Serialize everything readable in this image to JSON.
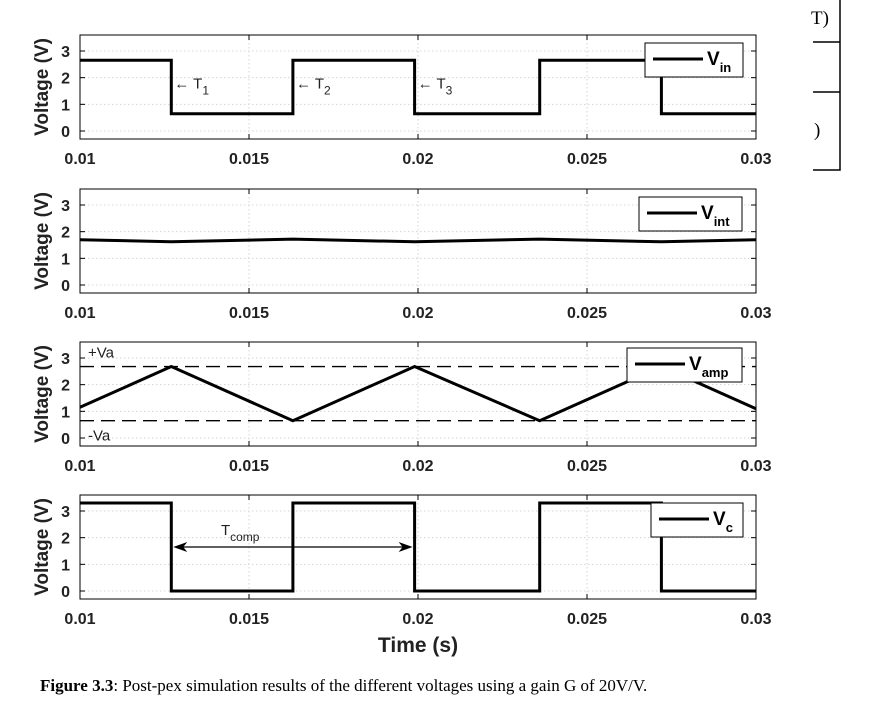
{
  "caption": {
    "label": "Figure 3.3",
    "text": ": Post-pex simulation results of the different voltages using a gain G of 20V/V."
  },
  "side_fragments": [
    "T)",
    ")"
  ],
  "xlabel": "Time (s)",
  "chart_data": [
    {
      "type": "line",
      "ylabel": "Voltage (V)",
      "xlim": [
        0.01,
        0.03
      ],
      "ylim": [
        -0.3,
        3.6
      ],
      "xticks": [
        "0.01",
        "0.015",
        "0.02",
        "0.025",
        "0.03"
      ],
      "yticks": [
        "0",
        "1",
        "2",
        "3"
      ],
      "grid": true,
      "legend": {
        "base": "V",
        "sub": "in",
        "placement": "top-right"
      },
      "series": [
        {
          "name": "Vin",
          "x": [
            0.01,
            0.0127,
            0.0127,
            0.0163,
            0.0163,
            0.0199,
            0.0199,
            0.0236,
            0.0236,
            0.0272,
            0.0272,
            0.03
          ],
          "y": [
            2.65,
            2.65,
            0.65,
            0.65,
            2.65,
            2.65,
            0.65,
            0.65,
            2.65,
            2.65,
            0.65,
            0.65
          ]
        }
      ],
      "annotations": [
        {
          "text": "← T",
          "sub": "1",
          "x": 0.0127,
          "y": 1.75
        },
        {
          "text": "← T",
          "sub": "2",
          "x": 0.0163,
          "y": 1.75
        },
        {
          "text": "← T",
          "sub": "3",
          "x": 0.0199,
          "y": 1.75
        }
      ]
    },
    {
      "type": "line",
      "ylabel": "Voltage (V)",
      "xlim": [
        0.01,
        0.03
      ],
      "ylim": [
        -0.3,
        3.6
      ],
      "xticks": [
        "0.01",
        "0.015",
        "0.02",
        "0.025",
        "0.03"
      ],
      "yticks": [
        "0",
        "1",
        "2",
        "3"
      ],
      "grid": true,
      "legend": {
        "base": "V",
        "sub": "int",
        "placement": "top-right"
      },
      "series": [
        {
          "name": "Vint",
          "x": [
            0.01,
            0.0127,
            0.0163,
            0.0199,
            0.0236,
            0.0272,
            0.03
          ],
          "y": [
            1.7,
            1.62,
            1.72,
            1.62,
            1.72,
            1.62,
            1.7
          ]
        }
      ]
    },
    {
      "type": "line",
      "ylabel": "Voltage (V)",
      "xlim": [
        0.01,
        0.03
      ],
      "ylim": [
        -0.3,
        3.6
      ],
      "xticks": [
        "0.01",
        "0.015",
        "0.02",
        "0.025",
        "0.03"
      ],
      "yticks": [
        "0",
        "1",
        "2",
        "3"
      ],
      "grid": true,
      "legend": {
        "base": "V",
        "sub": "amp",
        "placement": "top-right"
      },
      "series": [
        {
          "name": "Vamp",
          "x": [
            0.01,
            0.0127,
            0.0163,
            0.0199,
            0.0236,
            0.0272,
            0.03
          ],
          "y": [
            1.15,
            2.68,
            0.65,
            2.68,
            0.65,
            2.68,
            1.1
          ]
        }
      ],
      "hlines": [
        {
          "y": 2.68,
          "label": "+Va",
          "style": "dashed"
        },
        {
          "y": 0.65,
          "label": "-Va",
          "style": "dashed"
        }
      ]
    },
    {
      "type": "line",
      "ylabel": "Voltage (V)",
      "xlim": [
        0.01,
        0.03
      ],
      "ylim": [
        -0.3,
        3.6
      ],
      "xticks": [
        "0.01",
        "0.015",
        "0.02",
        "0.025",
        "0.03"
      ],
      "yticks": [
        "0",
        "1",
        "2",
        "3"
      ],
      "grid": true,
      "legend": {
        "base": "V",
        "sub": "c",
        "placement": "top-right"
      },
      "series": [
        {
          "name": "Vc",
          "x": [
            0.01,
            0.0127,
            0.0127,
            0.0163,
            0.0163,
            0.0199,
            0.0199,
            0.0236,
            0.0236,
            0.0272,
            0.0272,
            0.03
          ],
          "y": [
            3.3,
            3.3,
            0.0,
            0.0,
            3.3,
            3.3,
            0.0,
            0.0,
            3.3,
            3.3,
            0.0,
            0.0
          ]
        }
      ],
      "arrow": {
        "text": "T",
        "sub": "comp",
        "x1": 0.0127,
        "x2": 0.0199,
        "y": 1.65
      }
    }
  ]
}
